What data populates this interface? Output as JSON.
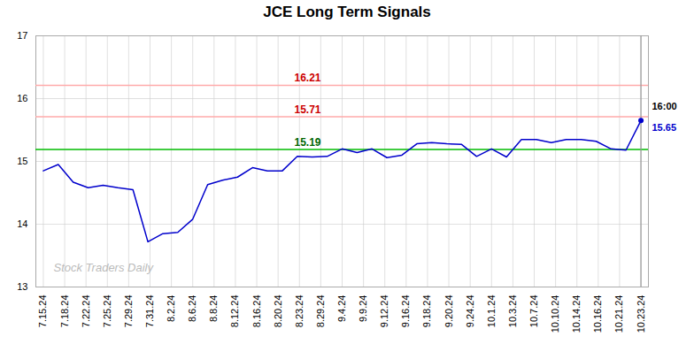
{
  "chart_data": {
    "type": "line",
    "title": "JCE Long Term Signals",
    "color": "#0000cc",
    "values": [
      14.85,
      14.95,
      14.67,
      14.58,
      14.62,
      14.58,
      14.55,
      13.72,
      13.85,
      13.87,
      14.08,
      14.63,
      14.7,
      14.75,
      14.9,
      14.85,
      14.85,
      15.08,
      15.07,
      15.08,
      15.2,
      15.14,
      15.2,
      15.06,
      15.1,
      15.28,
      15.3,
      15.28,
      15.27,
      15.08,
      15.2,
      15.07,
      15.35,
      15.35,
      15.3,
      15.35,
      15.35,
      15.32,
      15.2,
      15.18,
      15.65
    ],
    "xlim": [
      -0.5,
      40.5
    ],
    "xticks": [
      {
        "value": 0,
        "label": "7.15.24"
      },
      {
        "value": 1.4285714285714286,
        "label": "7.18.24"
      },
      {
        "value": 2.857142857142857,
        "label": "7.22.24"
      },
      {
        "value": 4.285714285714286,
        "label": "7.25.24"
      },
      {
        "value": 5.714285714285714,
        "label": "7.29.24"
      },
      {
        "value": 7.142857142857143,
        "label": "7.31.24"
      },
      {
        "value": 8.571428571428571,
        "label": "8.2.24"
      },
      {
        "value": 10,
        "label": "8.6.24"
      },
      {
        "value": 11.428571428571429,
        "label": "8.8.24"
      },
      {
        "value": 12.857142857142858,
        "label": "8.12.24"
      },
      {
        "value": 14.285714285714286,
        "label": "8.16.24"
      },
      {
        "value": 15.714285714285714,
        "label": "8.20.24"
      },
      {
        "value": 17.142857142857142,
        "label": "8.23.24"
      },
      {
        "value": 18.571428571428573,
        "label": "8.29.24"
      },
      {
        "value": 20,
        "label": "9.4.24"
      },
      {
        "value": 21.428571428571427,
        "label": "9.9.24"
      },
      {
        "value": 22.857142857142858,
        "label": "9.12.24"
      },
      {
        "value": 24.285714285714285,
        "label": "9.16.24"
      },
      {
        "value": 25.714285714285715,
        "label": "9.18.24"
      },
      {
        "value": 27.142857142857142,
        "label": "9.20.24"
      },
      {
        "value": 28.571428571428573,
        "label": "9.24.24"
      },
      {
        "value": 30,
        "label": "10.1.24"
      },
      {
        "value": 31.428571428571427,
        "label": "10.3.24"
      },
      {
        "value": 32.857142857142854,
        "label": "10.7.24"
      },
      {
        "value": 34.285714285714285,
        "label": "10.10.24"
      },
      {
        "value": 35.714285714285715,
        "label": "10.14.24"
      },
      {
        "value": 37.142857142857146,
        "label": "10.16.24"
      },
      {
        "value": 38.57142857142857,
        "label": "10.21.24"
      },
      {
        "value": 40,
        "label": "10.23.24"
      }
    ],
    "ylim": [
      13,
      17
    ],
    "yticks": [
      13,
      14,
      15,
      16,
      17
    ],
    "grid": true,
    "reference_lines": [
      {
        "y": 16.21,
        "label": "16.21",
        "color": "#ffaaaa",
        "label_color": "#cc0000"
      },
      {
        "y": 15.71,
        "label": "15.71",
        "color": "#ffaaaa",
        "label_color": "#cc0000"
      },
      {
        "y": 15.19,
        "label": "15.19",
        "color": "#00bb00",
        "label_color": "#006600"
      }
    ],
    "last_point_line_color": "#999999",
    "annotations": [
      {
        "text": "16:00",
        "color": "#000000"
      },
      {
        "text": "15.65",
        "value": 15.65,
        "color": "#0000cc"
      }
    ],
    "watermark": {
      "text": "Stock Traders Daily",
      "color": "#bbbbbb"
    }
  }
}
